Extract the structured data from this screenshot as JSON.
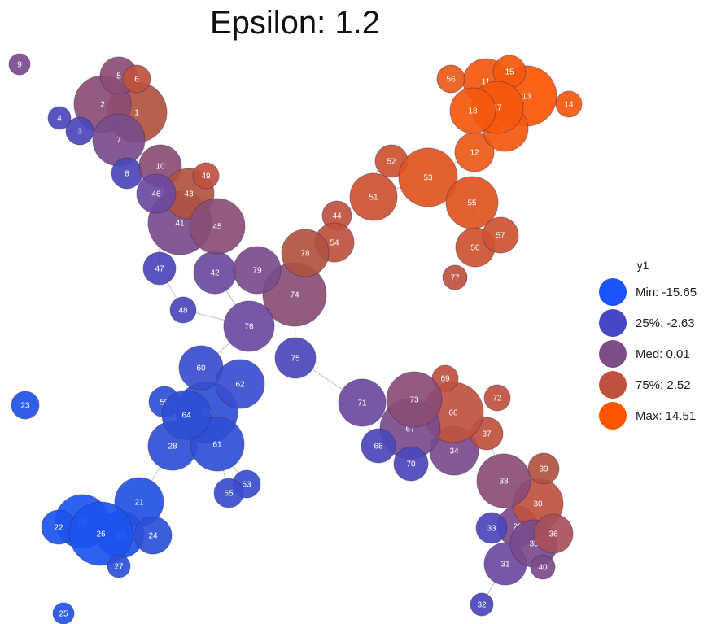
{
  "title": "Epsilon: 1.2",
  "legend": {
    "title": "y1",
    "items": [
      {
        "label": "Min: -15.65",
        "color": "#1a53ff"
      },
      {
        "label": "25%: -2.63",
        "color": "#4747c5"
      },
      {
        "label": "Med: 0.01",
        "color": "#7f4c8a"
      },
      {
        "label": "75%: 2.52",
        "color": "#c0513e"
      },
      {
        "label": "Max: 14.51",
        "color": "#ff5500"
      }
    ]
  },
  "nodes": [
    {
      "id": "1",
      "color": "#b0533f"
    },
    {
      "id": "2",
      "color": "#8a4d74"
    },
    {
      "id": "3",
      "color": "#4a47bb"
    },
    {
      "id": "4",
      "color": "#4a47bb"
    },
    {
      "id": "5",
      "color": "#8a4d74"
    },
    {
      "id": "6",
      "color": "#c0513e"
    },
    {
      "id": "7",
      "color": "#7a4b8c"
    },
    {
      "id": "8",
      "color": "#4a47bb"
    },
    {
      "id": "9",
      "color": "#7a4b8c"
    },
    {
      "id": "10",
      "color": "#8a4d74"
    },
    {
      "id": "11",
      "color": "#f4580d"
    },
    {
      "id": "12",
      "color": "#ea5a16"
    },
    {
      "id": "13",
      "color": "#fb5604"
    },
    {
      "id": "14",
      "color": "#f4580d"
    },
    {
      "id": "15",
      "color": "#f4580d"
    },
    {
      "id": "16",
      "color": "#f4580d"
    },
    {
      "id": "17",
      "color": "#f4580d"
    },
    {
      "id": "18",
      "color": "#f4580d"
    },
    {
      "id": "19",
      "color": "#1b54ef"
    },
    {
      "id": "20",
      "color": "#1b54ef"
    },
    {
      "id": "21",
      "color": "#2251e4"
    },
    {
      "id": "22",
      "color": "#1b54ef"
    },
    {
      "id": "23",
      "color": "#1f53e6"
    },
    {
      "id": "24",
      "color": "#2a50da"
    },
    {
      "id": "25",
      "color": "#1f53e6"
    },
    {
      "id": "26",
      "color": "#1b54ef"
    },
    {
      "id": "27",
      "color": "#2a50da"
    },
    {
      "id": "28",
      "color": "#2e4fd6"
    },
    {
      "id": "29",
      "color": "#7a4b8c"
    },
    {
      "id": "30",
      "color": "#c0513e"
    },
    {
      "id": "31",
      "color": "#6b49a0"
    },
    {
      "id": "32",
      "color": "#4a47bb"
    },
    {
      "id": "33",
      "color": "#4a47bb"
    },
    {
      "id": "34",
      "color": "#7a4b8c"
    },
    {
      "id": "35",
      "color": "#7a4b8c"
    },
    {
      "id": "36",
      "color": "#a74f5c"
    },
    {
      "id": "37",
      "color": "#c0513e"
    },
    {
      "id": "38",
      "color": "#8a4d74"
    },
    {
      "id": "39",
      "color": "#b0533f"
    },
    {
      "id": "40",
      "color": "#7a4b8c"
    },
    {
      "id": "41",
      "color": "#7a4b8c"
    },
    {
      "id": "42",
      "color": "#6b49a0"
    },
    {
      "id": "43",
      "color": "#b0533f"
    },
    {
      "id": "44",
      "color": "#c0513e"
    },
    {
      "id": "45",
      "color": "#8a4d74"
    },
    {
      "id": "46",
      "color": "#6b49a0"
    },
    {
      "id": "47",
      "color": "#4a47bb"
    },
    {
      "id": "48",
      "color": "#4a47bb"
    },
    {
      "id": "49",
      "color": "#c0513e"
    },
    {
      "id": "50",
      "color": "#cc5230"
    },
    {
      "id": "51",
      "color": "#cc5230"
    },
    {
      "id": "52",
      "color": "#cc5230"
    },
    {
      "id": "53",
      "color": "#e1541f"
    },
    {
      "id": "54",
      "color": "#c0513e"
    },
    {
      "id": "55",
      "color": "#e1541f"
    },
    {
      "id": "56",
      "color": "#ea5a16"
    },
    {
      "id": "57",
      "color": "#cc5230"
    },
    {
      "id": "58",
      "color": "#2e4fd6"
    },
    {
      "id": "59",
      "color": "#2e4fd6"
    },
    {
      "id": "60",
      "color": "#3a4dcf"
    },
    {
      "id": "61",
      "color": "#2e4fd6"
    },
    {
      "id": "62",
      "color": "#3a4dcf"
    },
    {
      "id": "63",
      "color": "#3a4dcf"
    },
    {
      "id": "64",
      "color": "#2e4fd6"
    },
    {
      "id": "65",
      "color": "#3a4dcf"
    },
    {
      "id": "66",
      "color": "#c0513e"
    },
    {
      "id": "67",
      "color": "#7a4b8c"
    },
    {
      "id": "68",
      "color": "#4a47bb"
    },
    {
      "id": "69",
      "color": "#c0513e"
    },
    {
      "id": "70",
      "color": "#4a47bb"
    },
    {
      "id": "71",
      "color": "#6b49a0"
    },
    {
      "id": "72",
      "color": "#c0513e"
    },
    {
      "id": "73",
      "color": "#8a4d74"
    },
    {
      "id": "74",
      "color": "#8a4d74"
    },
    {
      "id": "75",
      "color": "#4a47bb"
    },
    {
      "id": "76",
      "color": "#6b49a0"
    },
    {
      "id": "77",
      "color": "#c0513e"
    },
    {
      "id": "78",
      "color": "#b0533f"
    },
    {
      "id": "79",
      "color": "#7a4b8c"
    }
  ],
  "edges": [
    [
      "9",
      "9"
    ]
  ]
}
